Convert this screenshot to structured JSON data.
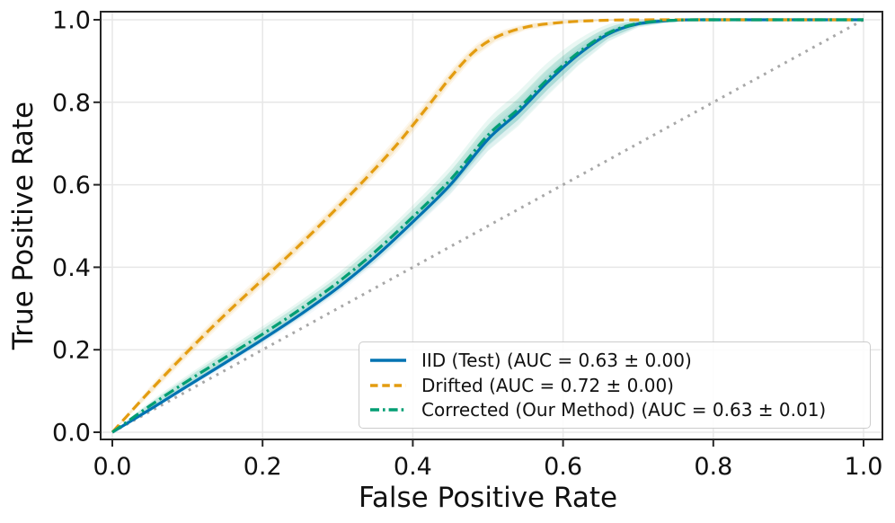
{
  "chart_data": {
    "type": "line",
    "title": "",
    "xlabel": "False Positive Rate",
    "ylabel": "True Positive Rate",
    "xticks": [
      0.0,
      0.2,
      0.4,
      0.6,
      0.8,
      1.0
    ],
    "yticks": [
      0.0,
      0.2,
      0.4,
      0.6,
      0.8,
      1.0
    ],
    "xtick_labels": [
      "0.0",
      "0.2",
      "0.4",
      "0.6",
      "0.8",
      "1.0"
    ],
    "ytick_labels": [
      "0.0",
      "0.2",
      "0.4",
      "0.6",
      "0.8",
      "1.0"
    ],
    "xlim": [
      -0.016,
      1.025
    ],
    "ylim": [
      -0.018,
      1.02
    ],
    "grid": true,
    "grid_color": "#e7e7e7",
    "spine_color": "#262626",
    "tick_label_color": "#111111",
    "legend_position": "lower right",
    "reference_line": {
      "name": "chance-diagonal",
      "from": [
        0,
        0
      ],
      "to": [
        1,
        1
      ],
      "style": "dotted",
      "color": "#a8a8a8"
    },
    "series": [
      {
        "id": "iid",
        "name": "IID (Test)",
        "auc": "0.63 ± 0.00",
        "legend_label": "IID (Test) (AUC = 0.63 ± 0.00)",
        "color": "#0173b2",
        "style": "solid",
        "x": [
          0,
          0.05,
          0.1,
          0.15,
          0.2,
          0.25,
          0.3,
          0.35,
          0.4,
          0.45,
          0.5,
          0.54,
          0.58,
          0.62,
          0.66,
          0.7,
          0.75,
          0.8,
          0.9,
          1
        ],
        "y": [
          0,
          0.055,
          0.112,
          0.168,
          0.225,
          0.285,
          0.35,
          0.425,
          0.51,
          0.6,
          0.71,
          0.775,
          0.85,
          0.915,
          0.965,
          0.99,
          0.999,
          1,
          1,
          1
        ],
        "band_halfwidth": [
          0,
          0.004,
          0.006,
          0.007,
          0.008,
          0.009,
          0.01,
          0.011,
          0.013,
          0.015,
          0.017,
          0.018,
          0.018,
          0.015,
          0.01,
          0.005,
          0.002,
          0,
          0,
          0
        ],
        "band_alpha": 0.08
      },
      {
        "id": "drifted",
        "name": "Drifted",
        "auc": "0.72 ± 0.00",
        "legend_label": "Drifted (AUC = 0.72 ± 0.00)",
        "color": "#e39c10",
        "style": "dashed",
        "x": [
          0,
          0.05,
          0.1,
          0.15,
          0.2,
          0.25,
          0.3,
          0.34,
          0.38,
          0.42,
          0.45,
          0.48,
          0.51,
          0.55,
          0.6,
          0.66,
          0.72,
          0.8,
          0.9,
          1
        ],
        "y": [
          0,
          0.1,
          0.195,
          0.285,
          0.37,
          0.455,
          0.545,
          0.62,
          0.7,
          0.79,
          0.86,
          0.92,
          0.957,
          0.982,
          0.994,
          0.999,
          1,
          1,
          1,
          1
        ],
        "band_halfwidth": [
          0,
          0.007,
          0.009,
          0.01,
          0.01,
          0.01,
          0.01,
          0.011,
          0.012,
          0.012,
          0.011,
          0.009,
          0.007,
          0.005,
          0.003,
          0.001,
          0,
          0,
          0,
          0
        ],
        "band_alpha": 0.14
      },
      {
        "id": "corrected",
        "name": "Corrected (Our Method)",
        "auc": "0.63 ± 0.01",
        "legend_label": "Corrected (Our Method) (AUC = 0.63 ± 0.01)",
        "color": "#029e73",
        "style": "dashdot",
        "x": [
          0,
          0.05,
          0.1,
          0.15,
          0.2,
          0.25,
          0.3,
          0.35,
          0.4,
          0.45,
          0.5,
          0.54,
          0.58,
          0.62,
          0.66,
          0.7,
          0.75,
          0.8,
          0.9,
          1
        ],
        "y": [
          0,
          0.064,
          0.124,
          0.181,
          0.238,
          0.298,
          0.363,
          0.438,
          0.522,
          0.612,
          0.72,
          0.783,
          0.857,
          0.92,
          0.968,
          0.991,
          0.999,
          1,
          1,
          1
        ],
        "band_halfwidth": [
          0,
          0.006,
          0.009,
          0.011,
          0.012,
          0.013,
          0.014,
          0.016,
          0.018,
          0.021,
          0.024,
          0.026,
          0.025,
          0.02,
          0.013,
          0.006,
          0.002,
          0,
          0,
          0
        ],
        "band_alpha": 0.16
      }
    ]
  }
}
